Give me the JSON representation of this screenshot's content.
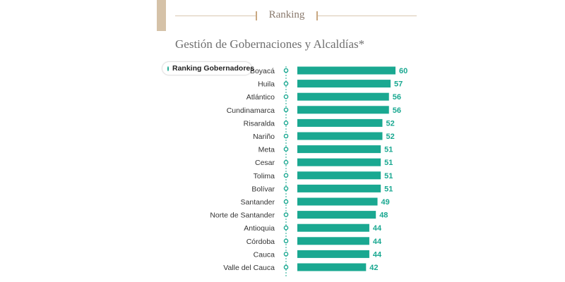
{
  "header": {
    "section": "Ranking"
  },
  "colors": {
    "bar": "#1aa891",
    "accent_tan": "#d5c2a8",
    "dot": "#1aa891"
  },
  "chart_data": {
    "type": "bar",
    "orientation": "horizontal",
    "title": "Gestión de Gobernaciones y Alcaldías*",
    "legend": [
      "Ranking Gobernadores"
    ],
    "legend_position": "top-left",
    "categories": [
      "Boyacá",
      "Huila",
      "Atlántico",
      "Cundinamarca",
      "Risaralda",
      "Nariño",
      "Meta",
      "Cesar",
      "Tolima",
      "Bolívar",
      "Santander",
      "Norte de Santander",
      "Antioquia",
      "Córdoba",
      "Cauca",
      "Valle del Cauca"
    ],
    "values": [
      60,
      57,
      56,
      56,
      52,
      52,
      51,
      51,
      51,
      51,
      49,
      48,
      44,
      44,
      44,
      42
    ],
    "xlim": [
      0,
      60
    ],
    "grid": false
  }
}
